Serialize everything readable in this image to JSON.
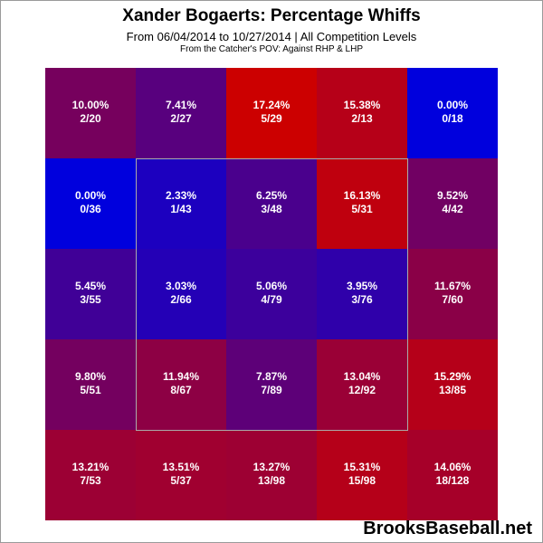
{
  "header": {
    "title": "Xander Bogaerts: Percentage Whiffs",
    "subtitle": "From 06/04/2014 to 10/27/2014 | All Competition Levels",
    "subtitle2": "From the Catcher's POV:  Against RHP & LHP"
  },
  "watermark": "BrooksBaseball.net",
  "colors": {
    "low": "#0000dd",
    "high": "#cc0000",
    "strike_zone_border": "#aaaaaa",
    "label": "#ffffff"
  },
  "chart_data": {
    "type": "heatmap",
    "rows": 5,
    "cols": 5,
    "value_range": [
      0,
      17.24
    ],
    "strike_zone": {
      "rows": [
        1,
        3
      ],
      "cols": [
        1,
        3
      ]
    },
    "cells": [
      [
        {
          "pct": 10.0,
          "label": "10.00%",
          "count": "2/20"
        },
        {
          "pct": 7.41,
          "label": "7.41%",
          "count": "2/27"
        },
        {
          "pct": 17.24,
          "label": "17.24%",
          "count": "5/29"
        },
        {
          "pct": 15.38,
          "label": "15.38%",
          "count": "2/13"
        },
        {
          "pct": 0.0,
          "label": "0.00%",
          "count": "0/18"
        }
      ],
      [
        {
          "pct": 0.0,
          "label": "0.00%",
          "count": "0/36"
        },
        {
          "pct": 2.33,
          "label": "2.33%",
          "count": "1/43"
        },
        {
          "pct": 6.25,
          "label": "6.25%",
          "count": "3/48"
        },
        {
          "pct": 16.13,
          "label": "16.13%",
          "count": "5/31"
        },
        {
          "pct": 9.52,
          "label": "9.52%",
          "count": "4/42"
        }
      ],
      [
        {
          "pct": 5.45,
          "label": "5.45%",
          "count": "3/55"
        },
        {
          "pct": 3.03,
          "label": "3.03%",
          "count": "2/66"
        },
        {
          "pct": 5.06,
          "label": "5.06%",
          "count": "4/79"
        },
        {
          "pct": 3.95,
          "label": "3.95%",
          "count": "3/76"
        },
        {
          "pct": 11.67,
          "label": "11.67%",
          "count": "7/60"
        }
      ],
      [
        {
          "pct": 9.8,
          "label": "9.80%",
          "count": "5/51"
        },
        {
          "pct": 11.94,
          "label": "11.94%",
          "count": "8/67"
        },
        {
          "pct": 7.87,
          "label": "7.87%",
          "count": "7/89"
        },
        {
          "pct": 13.04,
          "label": "13.04%",
          "count": "12/92"
        },
        {
          "pct": 15.29,
          "label": "15.29%",
          "count": "13/85"
        }
      ],
      [
        {
          "pct": 13.21,
          "label": "13.21%",
          "count": "7/53"
        },
        {
          "pct": 13.51,
          "label": "13.51%",
          "count": "5/37"
        },
        {
          "pct": 13.27,
          "label": "13.27%",
          "count": "13/98"
        },
        {
          "pct": 15.31,
          "label": "15.31%",
          "count": "15/98"
        },
        {
          "pct": 14.06,
          "label": "14.06%",
          "count": "18/128"
        }
      ]
    ]
  }
}
